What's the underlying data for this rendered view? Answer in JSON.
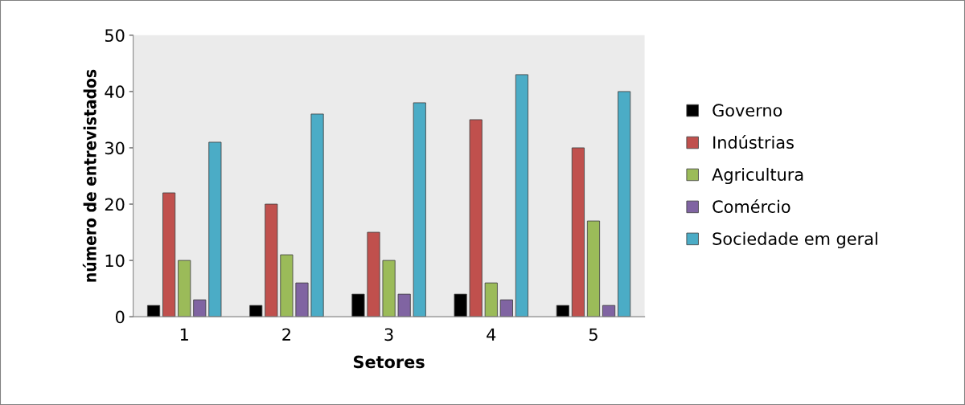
{
  "chart_data": {
    "type": "bar",
    "xlabel": "Setores",
    "ylabel": "número de entrevistados",
    "categories": [
      "1",
      "2",
      "3",
      "4",
      "5"
    ],
    "series": [
      {
        "name": "Governo",
        "color": "#000000",
        "values": [
          2,
          2,
          4,
          4,
          2
        ]
      },
      {
        "name": "Indústrias",
        "color": "#c0504d",
        "values": [
          22,
          20,
          15,
          35,
          30
        ]
      },
      {
        "name": "Agricultura",
        "color": "#9bbb59",
        "values": [
          10,
          11,
          10,
          6,
          17
        ]
      },
      {
        "name": "Comércio",
        "color": "#8064a2",
        "values": [
          3,
          6,
          4,
          3,
          2
        ]
      },
      {
        "name": "Sociedade em geral",
        "color": "#4bacc6",
        "values": [
          31,
          36,
          38,
          43,
          40
        ]
      }
    ],
    "ylim": [
      0,
      50
    ],
    "yticks": [
      0,
      10,
      20,
      30,
      40,
      50
    ],
    "grid": false,
    "legend": "right"
  }
}
